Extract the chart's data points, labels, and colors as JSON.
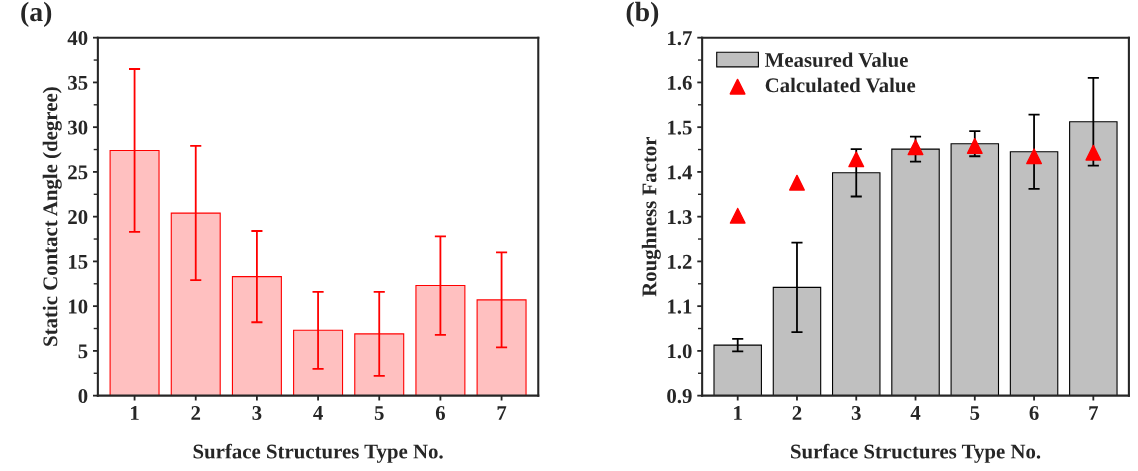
{
  "chart_data": [
    {
      "type": "bar",
      "annotations": [
        "(a)"
      ],
      "xlabel": "Surface Structures Type No.",
      "ylabel": "Static Contact Angle (degree)",
      "categories": [
        "1",
        "2",
        "3",
        "4",
        "5",
        "6",
        "7"
      ],
      "series": [
        {
          "color": "#ffc0c0",
          "values": [
            27.4,
            20.4,
            13.3,
            7.3,
            6.9,
            12.3,
            10.7
          ],
          "errors": [
            9.1,
            7.5,
            5.1,
            4.3,
            4.7,
            5.5,
            5.3
          ]
        }
      ],
      "ylim": [
        0,
        40
      ],
      "yticks": [
        0,
        5,
        10,
        15,
        20,
        25,
        30,
        35,
        40
      ],
      "grid": false,
      "legend": false
    },
    {
      "type": "bar",
      "annotations": [
        "(b)"
      ],
      "xlabel": "Surface Structures Type No.",
      "ylabel": "Roughness Factor",
      "categories": [
        "1",
        "2",
        "3",
        "4",
        "5",
        "6",
        "7"
      ],
      "series": [
        {
          "name": "Measured Value",
          "color": "#c0c0c0",
          "values": [
            1.013,
            1.142,
            1.398,
            1.451,
            1.463,
            1.445,
            1.512
          ],
          "errors": [
            0.014,
            0.1,
            0.053,
            0.028,
            0.028,
            0.083,
            0.098
          ]
        },
        {
          "name": "Calculated Value",
          "type": "scatter",
          "marker": "triangle",
          "color": "#ff0000",
          "x": [
            "1",
            "2",
            "3",
            "4",
            "5",
            "6",
            "7"
          ],
          "values": [
            1.302,
            1.376,
            1.428,
            1.455,
            1.458,
            1.435,
            1.443
          ]
        }
      ],
      "ylim": [
        0.9,
        1.7
      ],
      "yticks": [
        {
          "value": 0.9,
          "label": "0.9"
        },
        {
          "value": 1.0,
          "label": "1.0"
        },
        {
          "value": 1.1,
          "label": "1.1"
        },
        {
          "value": 1.2,
          "label": "1.2"
        },
        {
          "value": 1.3,
          "label": "1.3"
        },
        {
          "value": 1.4,
          "label": "1.4"
        },
        {
          "value": 1.5,
          "label": "1.5"
        },
        {
          "value": 1.6,
          "label": "1.6"
        },
        {
          "value": 1.7,
          "label": "1.7"
        }
      ],
      "grid": false,
      "legend": "top left"
    }
  ]
}
